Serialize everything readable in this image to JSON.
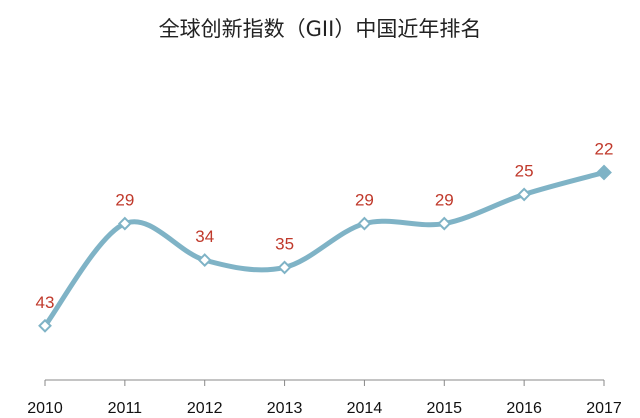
{
  "chart_data": {
    "type": "line",
    "title": "全球创新指数（GII）中国近年排名",
    "xlabel": "",
    "ylabel": "",
    "categories": [
      "2010",
      "2011",
      "2012",
      "2013",
      "2014",
      "2015",
      "2016",
      "2017"
    ],
    "series": [
      {
        "values": [
          43,
          29,
          34,
          35,
          29,
          29,
          25,
          22
        ]
      }
    ],
    "ylim": [
      18,
      50
    ],
    "y_inverted": true,
    "y_axis_visible": false,
    "grid": false,
    "smooth": true,
    "colors": {
      "line": "#7fb3c6",
      "marker_fill": "#ffffff",
      "marker_stroke": "#7fb3c6",
      "data_label": "#c0392b",
      "axis": "#888888"
    }
  }
}
